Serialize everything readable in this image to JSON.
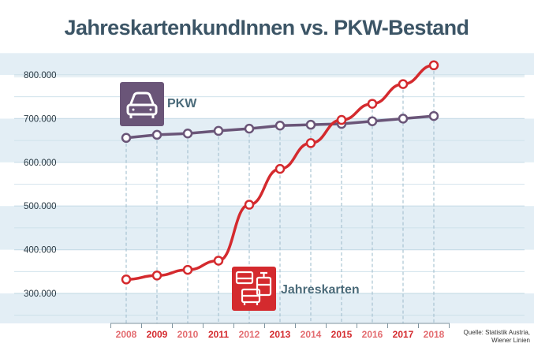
{
  "chart_data": {
    "type": "line",
    "title": "JahreskartenkundInnen vs. PKW-Bestand",
    "x": [
      "2008",
      "2009",
      "2010",
      "2011",
      "2012",
      "2013",
      "2014",
      "2015",
      "2016",
      "2017",
      "2018"
    ],
    "ylim": [
      200000,
      850000
    ],
    "yticks": [
      {
        "value": 300000,
        "label": "300.000"
      },
      {
        "value": 400000,
        "label": "400.000"
      },
      {
        "value": 500000,
        "label": "500.000"
      },
      {
        "value": 600000,
        "label": "600.000"
      },
      {
        "value": 700000,
        "label": "700.000"
      },
      {
        "value": 800000,
        "label": "800.000"
      }
    ],
    "series": [
      {
        "name": "PKW",
        "icon": "car-icon",
        "color": "#6a5578",
        "values": [
          656000,
          663000,
          666000,
          672000,
          677000,
          684000,
          686000,
          688000,
          694000,
          700000,
          706000
        ]
      },
      {
        "name": "Jahreskarten",
        "icon": "tram-bus-icon",
        "color": "#d42a2e",
        "values": [
          332000,
          341000,
          354000,
          375000,
          503000,
          585000,
          644000,
          697000,
          734000,
          779000,
          822000
        ]
      }
    ],
    "colors": {
      "title": "#3c5566",
      "grid": "#c9dde8",
      "band": "#e3eef5",
      "axis": "#7f949f",
      "xtick_odd_years": "#d42a2e",
      "xtick_even_years": "#e36b6f"
    },
    "source": [
      "Quelle: Statistik Austria,",
      "Wiener Linien"
    ]
  }
}
